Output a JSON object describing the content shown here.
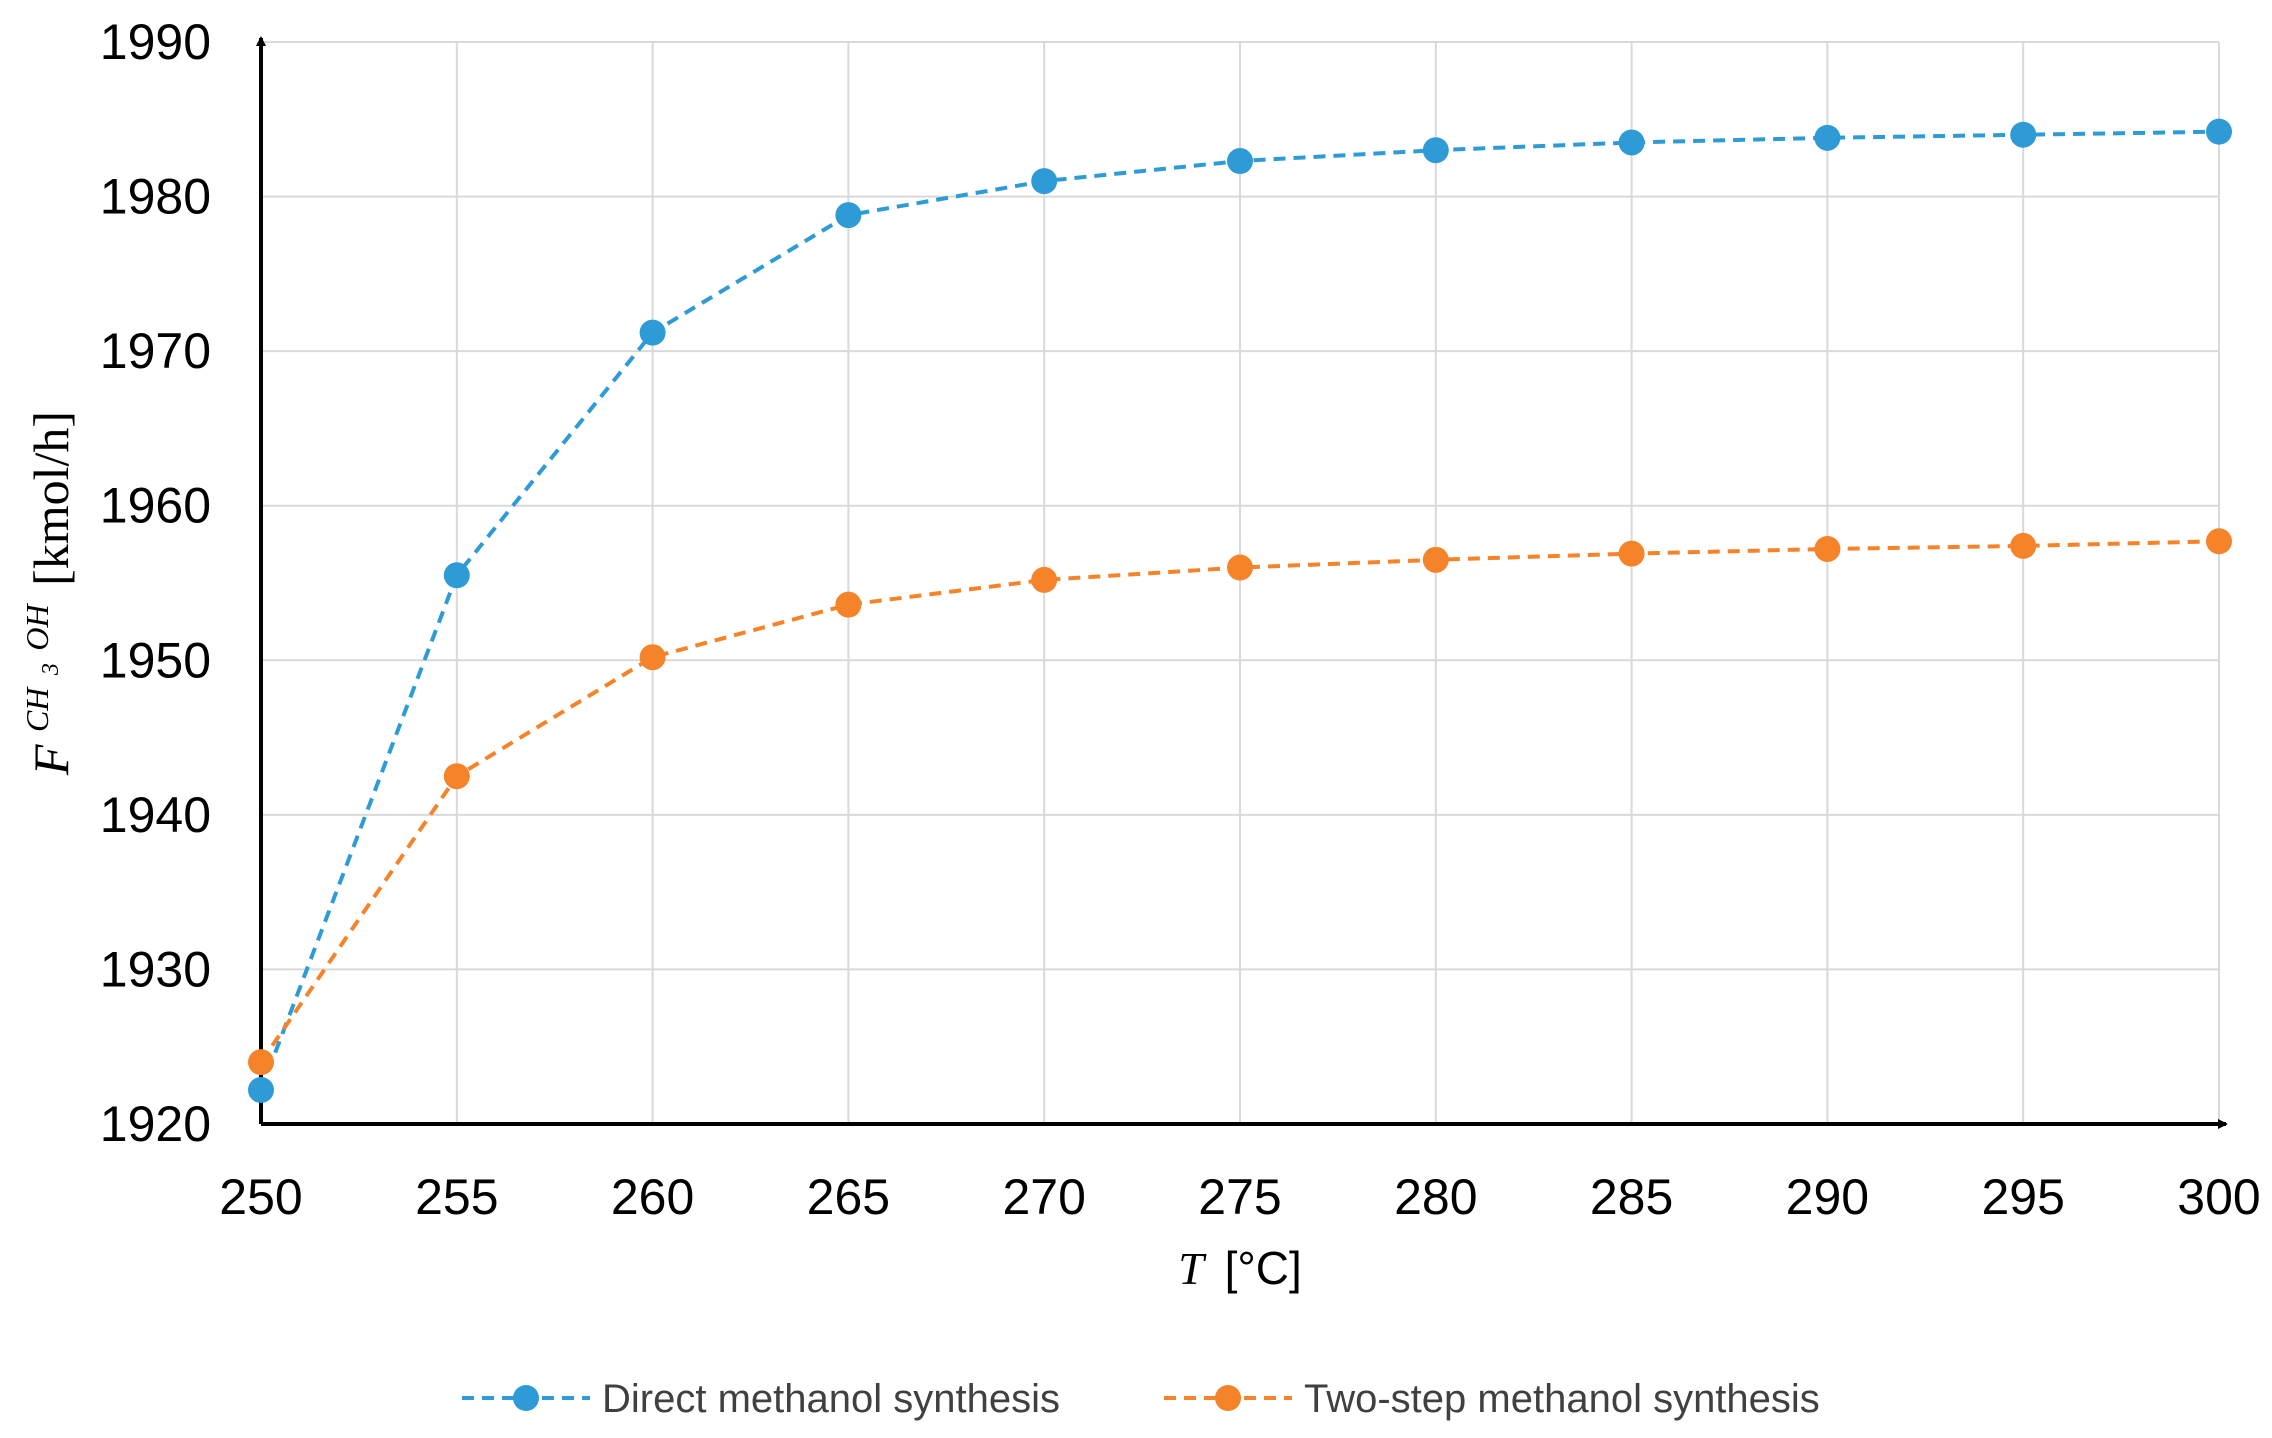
{
  "chart_data": {
    "type": "line",
    "x": [
      250,
      255,
      260,
      265,
      270,
      275,
      280,
      285,
      290,
      295,
      300
    ],
    "series": [
      {
        "name": "Direct methanol synthesis",
        "color": "#2E9BD6",
        "values": [
          1922.2,
          1955.5,
          1971.2,
          1978.8,
          1981.0,
          1982.3,
          1983.0,
          1983.5,
          1983.8,
          1984.0,
          1984.2
        ]
      },
      {
        "name": "Two-step methanol synthesis",
        "color": "#F5832A",
        "values": [
          1924.0,
          1942.5,
          1950.2,
          1953.6,
          1955.2,
          1956.0,
          1956.5,
          1956.9,
          1957.2,
          1957.4,
          1957.7
        ]
      }
    ],
    "xlim": [
      250,
      300
    ],
    "ylim": [
      1920,
      1990
    ],
    "x_ticks": [
      "250",
      "255",
      "260",
      "265",
      "270",
      "275",
      "280",
      "285",
      "290",
      "295",
      "300"
    ],
    "y_ticks": [
      "1920",
      "1930",
      "1940",
      "1950",
      "1960",
      "1970",
      "1980",
      "1990"
    ],
    "xlabel": {
      "var": "T",
      "unit": "[°C]"
    },
    "ylabel": {
      "var": "F",
      "sup": "CH",
      "sub": "3",
      "sup_rest": "OH",
      "unit": "[kmol/h]"
    },
    "grid": true,
    "legend_position": "bottom",
    "line_style": "dashed",
    "marker": "circle"
  }
}
